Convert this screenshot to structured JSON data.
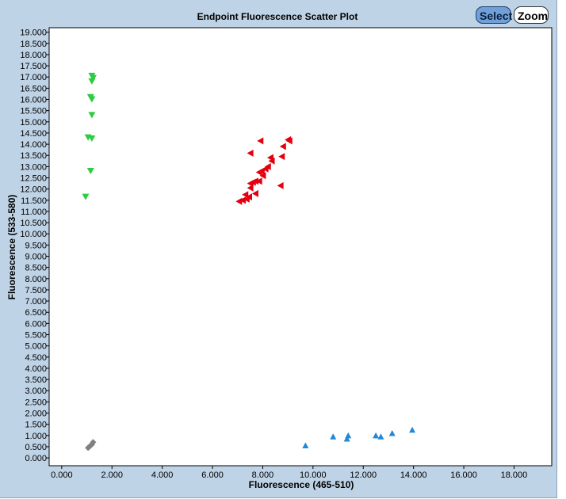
{
  "toolbar": {
    "select_label": "Select",
    "zoom_label": "Zoom"
  },
  "chart_data": {
    "type": "scatter",
    "title": "Endpoint Fluorescence Scatter Plot",
    "xlabel": "Fluorescence (465-510)",
    "ylabel": "Fluorescence (533-580)",
    "xlim": [
      -0.5,
      19.5
    ],
    "ylim": [
      -0.35,
      19.2
    ],
    "xticks": [
      "0.000",
      "2.000",
      "4.000",
      "6.000",
      "8.000",
      "10.000",
      "12.000",
      "14.000",
      "16.000",
      "18.000"
    ],
    "yticks": [
      "0.000",
      "0.500",
      "1.000",
      "1.500",
      "2.000",
      "2.500",
      "3.000",
      "3.500",
      "4.000",
      "4.500",
      "5.000",
      "5.500",
      "6.000",
      "6.500",
      "7.000",
      "7.500",
      "8.000",
      "8.500",
      "9.000",
      "9.500",
      "10.000",
      "10.500",
      "11.000",
      "11.500",
      "12.000",
      "12.500",
      "13.000",
      "13.500",
      "14.000",
      "14.500",
      "15.000",
      "15.500",
      "16.000",
      "16.500",
      "17.000",
      "17.500",
      "18.000",
      "18.500",
      "19.000"
    ],
    "grid": false,
    "series": [
      {
        "color": "#2ecc40",
        "marker": "triangle-down",
        "points": [
          [
            1.2,
            17.05
          ],
          [
            1.25,
            16.95
          ],
          [
            1.2,
            16.8
          ],
          [
            1.15,
            16.1
          ],
          [
            1.2,
            16.0
          ],
          [
            1.2,
            15.3
          ],
          [
            1.05,
            14.3
          ],
          [
            1.2,
            14.25
          ],
          [
            1.15,
            12.8
          ],
          [
            0.95,
            11.65
          ]
        ]
      },
      {
        "color": "#e3000f",
        "marker": "triangle-left",
        "points": [
          [
            9.0,
            14.2
          ],
          [
            9.05,
            14.15
          ],
          [
            7.9,
            14.15
          ],
          [
            8.8,
            13.9
          ],
          [
            7.5,
            13.6
          ],
          [
            8.75,
            13.45
          ],
          [
            8.3,
            13.4
          ],
          [
            8.35,
            13.25
          ],
          [
            8.2,
            13.0
          ],
          [
            8.1,
            12.9
          ],
          [
            7.95,
            12.8
          ],
          [
            7.85,
            12.75
          ],
          [
            8.0,
            12.6
          ],
          [
            7.85,
            12.35
          ],
          [
            7.7,
            12.35
          ],
          [
            7.6,
            12.3
          ],
          [
            7.5,
            12.25
          ],
          [
            8.7,
            12.15
          ],
          [
            7.5,
            12.05
          ],
          [
            7.7,
            11.8
          ],
          [
            7.3,
            11.75
          ],
          [
            7.45,
            11.65
          ],
          [
            7.35,
            11.55
          ],
          [
            7.2,
            11.5
          ],
          [
            7.05,
            11.45
          ]
        ]
      },
      {
        "color": "#1f88d8",
        "marker": "triangle-up",
        "points": [
          [
            13.95,
            1.25
          ],
          [
            13.15,
            1.1
          ],
          [
            12.5,
            1.0
          ],
          [
            12.7,
            0.95
          ],
          [
            11.4,
            1.0
          ],
          [
            10.8,
            0.95
          ],
          [
            11.35,
            0.85
          ],
          [
            9.7,
            0.55
          ]
        ]
      },
      {
        "color": "#808080",
        "marker": "diamond",
        "points": [
          [
            1.25,
            0.7
          ],
          [
            1.2,
            0.6
          ],
          [
            1.15,
            0.55
          ],
          [
            1.05,
            0.45
          ],
          [
            1.1,
            0.5
          ]
        ]
      }
    ]
  }
}
